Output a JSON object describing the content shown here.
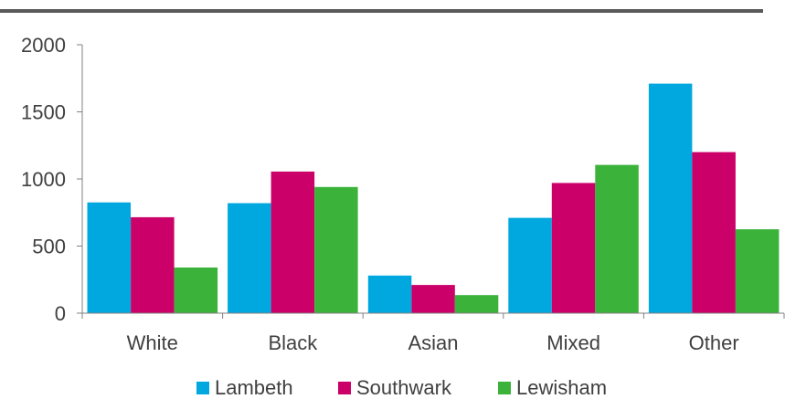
{
  "chart_data": {
    "type": "bar",
    "title": "",
    "xlabel": "",
    "ylabel": "",
    "categories": [
      "White",
      "Black",
      "Asian",
      "Mixed",
      "Other"
    ],
    "ylim": [
      0,
      2000
    ],
    "yticks": [
      0,
      500,
      1000,
      1500,
      2000
    ],
    "grid": false,
    "legend_position": "bottom",
    "series": [
      {
        "name": "Lambeth",
        "color": "#00a8df",
        "values": [
          825,
          820,
          280,
          710,
          1710
        ]
      },
      {
        "name": "Southwark",
        "color": "#cc0069",
        "values": [
          715,
          1055,
          210,
          970,
          1200
        ]
      },
      {
        "name": "Lewisham",
        "color": "#3bb33b",
        "values": [
          340,
          940,
          135,
          1105,
          625
        ]
      }
    ]
  },
  "colors": {
    "title_rule": "#595959",
    "axis": "#808080",
    "text": "#404040"
  }
}
